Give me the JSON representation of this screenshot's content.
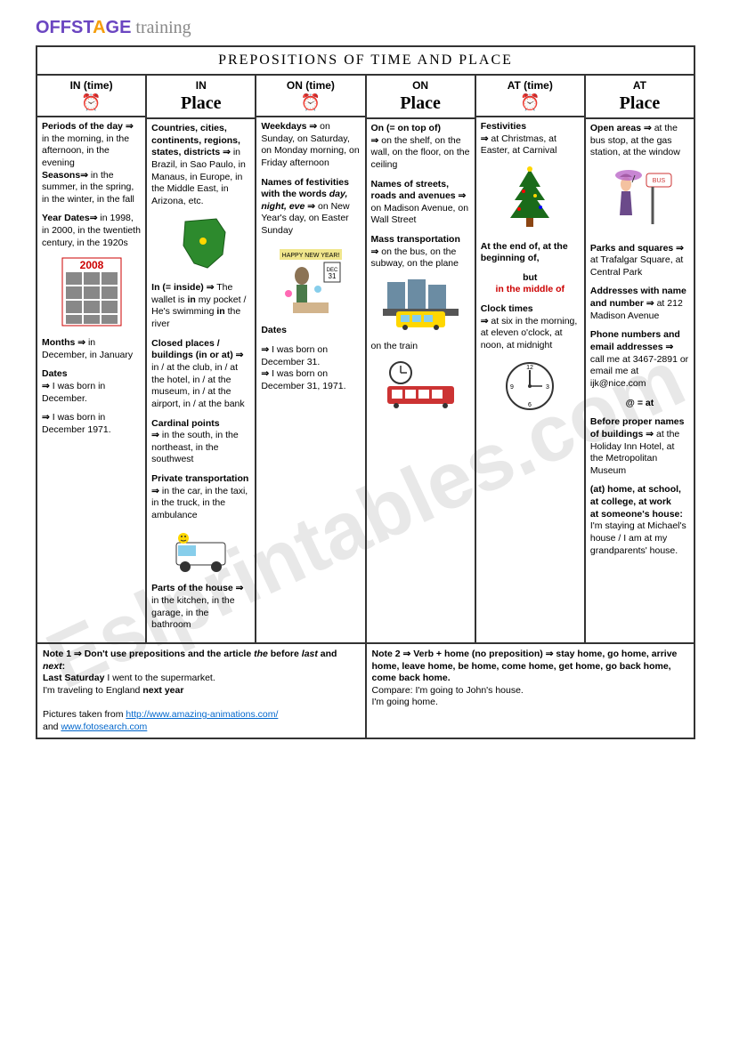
{
  "logo": {
    "off": "OFFST",
    "a": "A",
    "ge": "GE",
    "training": " training"
  },
  "title": "PREPOSITIONS OF TIME AND PLACE",
  "watermark": "Eslprintables.com",
  "columns": [
    {
      "header_prep": "IN (time)",
      "header_sub": "clock",
      "body_html": "<p><b>Periods of the day</b> <span class='arrow'>⇒</span> in the morning, in the afternoon, in the evening<br><b>Seasons⇒</b> in the summer, in the spring, in the winter, in the fall</p><p><b>Year Dates⇒</b> in 1998, in 2000, in the twentieth century, in the 1920s</p><div class='illustration'><svg width='70' height='80'><rect x='2' y='2' width='66' height='76' fill='#fff' stroke='#cc0000'/><text x='35' y='14' text-anchor='middle' font-size='12' fill='#cc0000' font-weight='bold'>2008</text><g fill='#888'><rect x='6' y='18' width='18' height='14'/><rect x='26' y='18' width='18' height='14'/><rect x='46' y='18' width='18' height='14'/><rect x='6' y='34' width='18' height='14'/><rect x='26' y='34' width='18' height='14'/><rect x='46' y='34' width='18' height='14'/><rect x='6' y='50' width='18' height='14'/><rect x='26' y='50' width='18' height='14'/><rect x='46' y='50' width='18' height='14'/><rect x='6' y='66' width='18' height='10'/><rect x='26' y='66' width='18' height='10'/><rect x='46' y='66' width='18' height='10'/></g></svg></div><p><b>Months ⇒</b> in December, in January</p><p><b>Dates</b><br><span class='arrow'>⇒</span> I was born in December.</p><p><span class='arrow'>⇒</span> I was born in December 1971.</p>"
    },
    {
      "header_prep": "IN",
      "header_sub": "place",
      "body_html": "<p><b>Countries, cities, continents, regions, states, districts ⇒</b> in Brazil, in Sao Paulo, in Manaus, in Europe, in the Middle East, in Arizona, etc.</p><div class='illustration'><svg width='75' height='65'><path d='M20,8 L55,5 L65,20 L62,45 L45,60 L30,55 L18,35 Z' fill='#2d8a2d' stroke='#1a5a1a'/><circle cx='40' cy='30' r='4' fill='#ffd700'/></svg></div><p><b>In (= inside) ⇒</b> The wallet is <b>in</b> my pocket / He's swimming <b>in</b> the river</p><p><b>Closed places / buildings (in or at) ⇒</b> in / at the club, in / at the hotel, in / at the museum, in / at the airport, in / at the bank</p><p><b>Cardinal points</b><br><span class='arrow'>⇒</span> in the south, in the northeast, in the southwest</p><p><b>Private transportation ⇒</b> in the car, in the taxi, in the truck, in the ambulance</p><div class='illustration'><svg width='75' height='50'><rect x='10' y='15' width='55' height='25' fill='#fff' stroke='#333' rx='3'/><rect x='12' y='18' width='20' height='12' fill='#87ceeb'/><circle cx='20' cy='42' r='6' fill='#333'/><circle cx='55' cy='42' r='6' fill='#333'/><circle cx='18' cy='10' r='6' fill='#ffd700'/><circle cx='16' cy='8' r='1' fill='#333'/><circle cx='20' cy='8' r='1' fill='#333'/><path d='M15,12 Q18,14 21,12' stroke='#333' fill='none'/></svg></div><p><b>Parts of the house ⇒</b> in the kitchen, in the garage, in the bathroom</p>"
    },
    {
      "header_prep": "ON (time)",
      "header_sub": "clock",
      "body_html": "<p><b>Weekdays ⇒</b> on Sunday, on Saturday, on Monday morning, on Friday afternoon</p><p><b>Names of festivities with the words <i>day, night, eve</i> ⇒</b> on New Year's day, on Easter Sunday</p><div class='illustration'><svg width='80' height='80'><rect x='5' y='5' width='70' height='12' fill='#f0e68c'/><text x='40' y='14' text-anchor='middle' font-size='7'>HAPPY NEW YEAR!</text><rect x='55' y='20' width='18' height='22' fill='#fff' stroke='#333'/><text x='64' y='30' text-anchor='middle' font-size='6'>DEC</text><text x='64' y='38' text-anchor='middle' font-size='8'>31</text><ellipse cx='30' cy='35' rx='8' ry='10' fill='#8b7355'/><rect x='24' y='45' width='12' height='20' fill='#4a7a4a'/><rect x='20' y='65' width='40' height='12' fill='#d2b48c'/><circle cx='15' cy='55' r='4' fill='#ff69b4'/><circle cx='48' cy='50' r='4' fill='#87ceeb'/></svg></div><p><b>Dates</b></p><p><span class='arrow'>⇒</span> I was born on December 31.<br><span class='arrow'>⇒</span> I was born on December 31, 1971.</p>"
    },
    {
      "header_prep": "ON",
      "header_sub": "place",
      "body_html": "<p><b>On (= on top of)</b><br><span class='arrow'>⇒</span> on the shelf, on the wall, on the floor, on the ceiling</p><p><b>Names of streets, roads and avenues ⇒</b> on Madison Avenue, on Wall Street</p><p><b>Mass transportation</b><br><span class='arrow'>⇒</span> on the bus, on the subway, on the plane</p><div class='illustration'><svg width='85' height='60'><rect x='5' y='5' width='20' height='30' fill='#6b8ca3'/><rect x='28' y='2' width='20' height='33' fill='#6b8ca3'/><rect x='51' y='8' width='20' height='27' fill='#6b8ca3'/><rect x='0' y='35' width='85' height='8' fill='#555'/><rect x='15' y='38' width='55' height='18' fill='#ffd700' rx='3'/><rect x='20' y='42' width='10' height='8' fill='#87ceeb'/><rect x='33' y='42' width='10' height='8' fill='#87ceeb'/><rect x='46' y='42' width='10' height='8' fill='#87ceeb'/><circle cx='25' cy='56' r='3' fill='#333'/><circle cx='60' cy='56' r='3' fill='#333'/></svg></div><p>on the train</p><div class='illustration'><svg width='85' height='55'><circle cx='20' cy='15' r='12' fill='#fff' stroke='#333' stroke-width='2'/><line x1='20' y1='15' x2='20' y2='7' stroke='#333' stroke-width='1.5'/><line x1='20' y1='15' x2='27' y2='15' stroke='#333' stroke-width='1.5'/><rect x='5' y='30' width='75' height='20' fill='#cc3333' rx='3'/><rect x='10' y='34' width='12' height='10' fill='#fff'/><rect x='25' y='34' width='12' height='10' fill='#fff'/><rect x='40' y='34' width='12' height='10' fill='#fff'/><rect x='55' y='34' width='12' height='10' fill='#fff'/><circle cx='15' cy='52' r='3' fill='#333'/><circle cx='70' cy='52' r='3' fill='#333'/></svg></div>"
    },
    {
      "header_prep": "AT (time)",
      "header_sub": "clock",
      "body_html": "<p><b>Festivities</b><br><span class='arrow'>⇒</span> at Christmas, at Easter, at Carnival</p><div class='illustration'><svg width='65' height='75'><polygon points='32,5 20,25 44,25' fill='#1a6b1a'/><polygon points='32,15 15,40 49,40' fill='#1a6b1a'/><polygon points='32,28 10,60 54,60' fill='#1a6b1a'/><rect x='28' y='60' width='8' height='10' fill='#8b4513'/><circle cx='32' cy='5' r='3' fill='#ffd700'/><circle cx='25' cy='30' r='2' fill='#ff0000'/><circle cx='38' cy='35' r='2' fill='#ffd700'/><circle cx='20' cy='50' r='2' fill='#ff0000'/><circle cx='44' cy='48' r='2' fill='#0000ff'/></svg></div><p><b>At the end of, at the beginning of,</b></p><p style='text-align:center'><b>but</b><br><span class='red-text'><b>in the middle of</b></span></p><p><b>Clock times</b><br><span class='arrow'>⇒</span> at six in the morning, at eleven o'clock, at noon, at midnight</p><div class='illustration'><svg width='60' height='60'><circle cx='30' cy='30' r='26' fill='#fff' stroke='#333' stroke-width='2'/><circle cx='30' cy='30' r='2' fill='#333'/><line x1='30' y1='30' x2='30' y2='12' stroke='#333' stroke-width='2'/><line x1='30' y1='30' x2='44' y2='30' stroke='#333' stroke-width='1.5'/><text x='30' y='11' text-anchor='middle' font-size='7'>12</text><text x='50' y='33' text-anchor='middle' font-size='7'>3</text><text x='30' y='53' text-anchor='middle' font-size='7'>6</text><text x='10' y='33' text-anchor='middle' font-size='7'>9</text></svg></div>"
    },
    {
      "header_prep": "AT",
      "header_sub": "place",
      "body_html": "<p><b>Open areas ⇒</b> at the bus stop, at the gas station, at the window</p><div class='illustration'><svg width='80' height='75'><rect x='48' y='8' width='28' height='15' fill='#fff' stroke='#cc3333' rx='3'/><text x='62' y='18' text-anchor='middle' font-size='7' fill='#cc3333'>BUS</text><line x1='55' y1='23' x2='55' y2='65' stroke='#555' stroke-width='3'/><ellipse cx='25' cy='20' rx='6' ry='8' fill='#f4c2a0'/><path d='M18,12 Q25,5 32,12' fill='#4a3020'/><path d='M20,28 L30,28 L32,55 L18,55 Z' fill='#6b4a8a'/><ellipse cx='28' cy='10' rx='15' ry='6' fill='#ba68c8' opacity='0.8'/><line x1='32' y1='18' x2='35' y2='10' stroke='#333'/></svg></div><p><b>Parks and squares ⇒</b> at Trafalgar Square, at Central Park</p><p><b>Addresses with name and number ⇒</b> at 212 Madison Avenue</p><p><b>Phone numbers and email addresses ⇒</b> call me at 3467-2891 or email me at ijk@nice.com</p><p style='text-align:center'><b>@ = at</b></p><p><b>Before proper names of buildings ⇒</b> at the Holiday Inn Hotel, at the Metropolitan Museum</p><p><b>(at) home, at school, at college, at work<br>at someone's house:</b> I'm staying at Michael's house / I am at my grandparents' house.</p>"
    }
  ],
  "notes": [
    {
      "html": "<b>Note 1 ⇒ Don't use prepositions and the article <i>the</i> before <i>last</i> and <i>next</i>:</b><br><b>Last Saturday</b> I went to the supermarket.<br>I'm traveling to England <b>next year</b><br><br>Pictures taken from <a href='#'>http://www.amazing-animations.com/</a><br>and <a href='#'>www.fotosearch.com</a>"
    },
    {
      "html": "<b>Note 2 ⇒ Verb + home (no preposition) ⇒ stay home, go home, arrive home, leave home, be home, come home, get home, go back home, come back home.</b><br>Compare: I'm going to John's house.<br>I'm going home."
    }
  ]
}
